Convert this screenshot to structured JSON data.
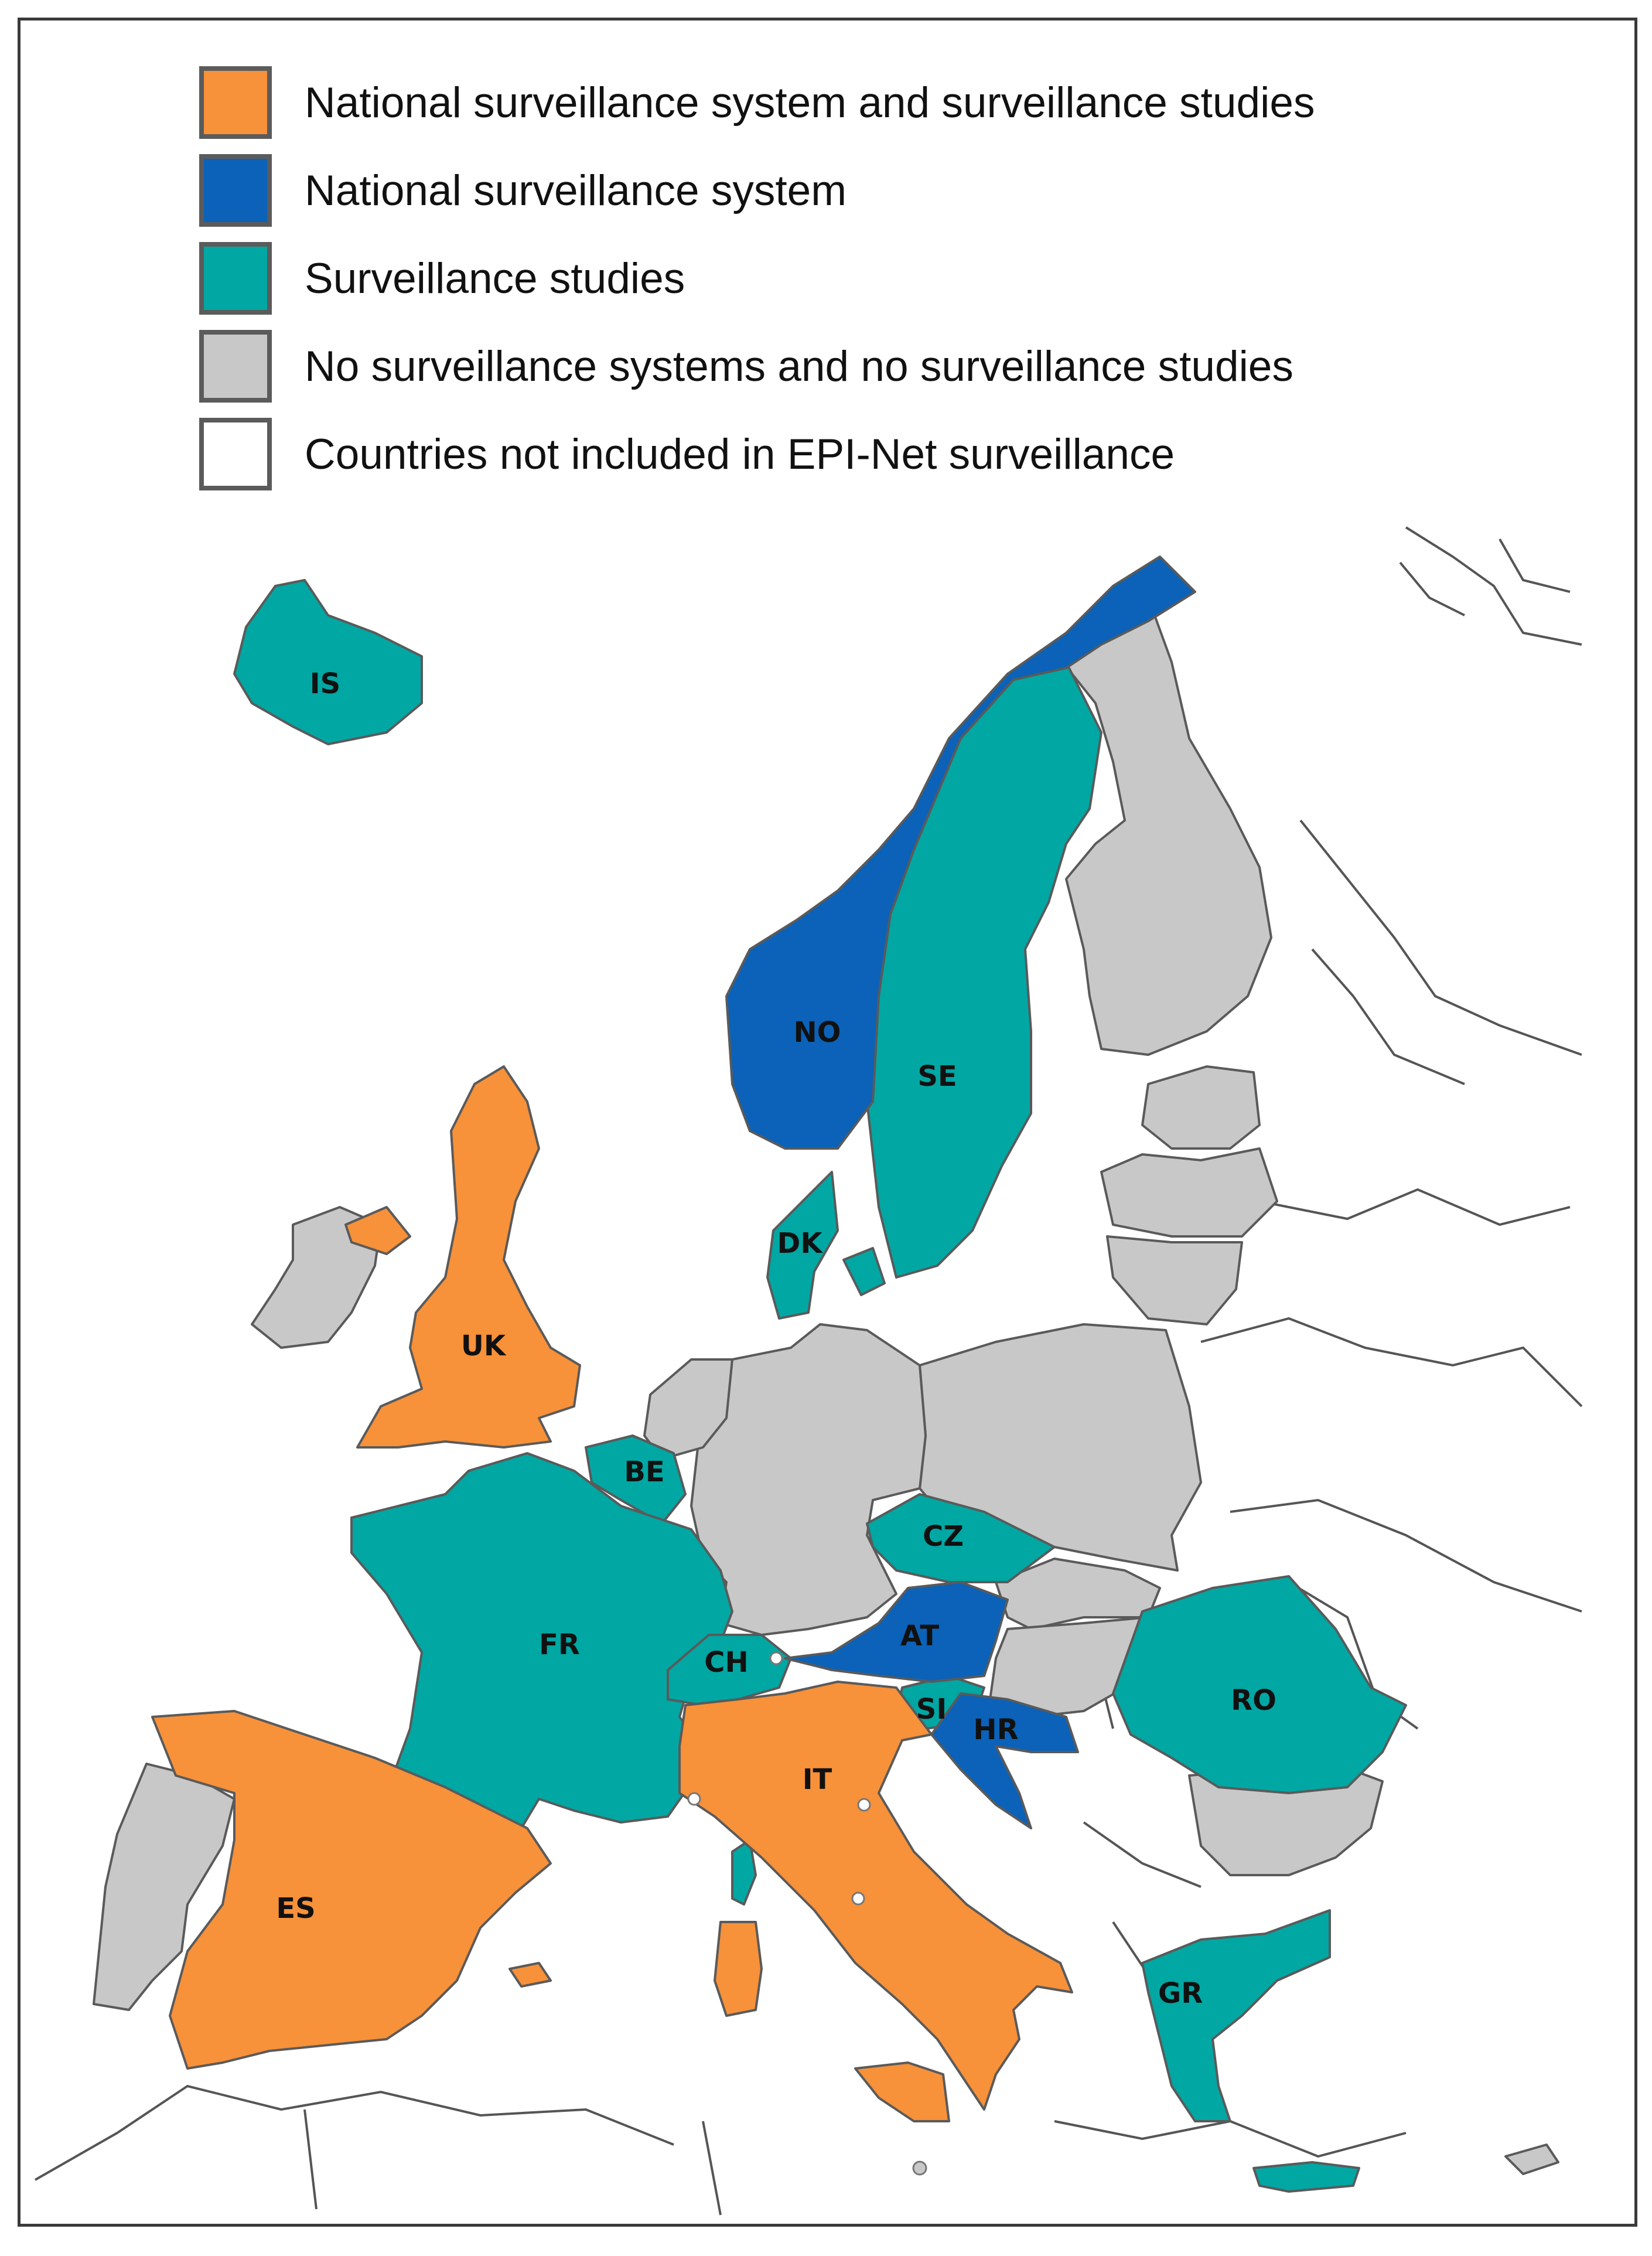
{
  "colors": {
    "both": "#f7913a",
    "national": "#0b62b8",
    "studies": "#00a7a3",
    "none": "#c8c8c8",
    "not_included": "#ffffff"
  },
  "legend": {
    "items": [
      {
        "key": "both",
        "label": "National surveillance system and surveillance studies"
      },
      {
        "key": "national",
        "label": "National surveillance system"
      },
      {
        "key": "studies",
        "label": "Surveillance studies"
      },
      {
        "key": "none",
        "label": "No surveillance systems and no surveillance studies"
      },
      {
        "key": "not_included",
        "label": "Countries not included in EPI-Net surveillance"
      }
    ]
  },
  "countries": [
    {
      "code": "IS",
      "status": "studies"
    },
    {
      "code": "NO",
      "status": "national"
    },
    {
      "code": "SE",
      "status": "studies"
    },
    {
      "code": "DK",
      "status": "studies"
    },
    {
      "code": "UK",
      "status": "both"
    },
    {
      "code": "BE",
      "status": "studies"
    },
    {
      "code": "FR",
      "status": "studies"
    },
    {
      "code": "CZ",
      "status": "studies"
    },
    {
      "code": "AT",
      "status": "national"
    },
    {
      "code": "CH",
      "status": "studies"
    },
    {
      "code": "SI",
      "status": "studies"
    },
    {
      "code": "HR",
      "status": "national"
    },
    {
      "code": "RO",
      "status": "studies"
    },
    {
      "code": "IT",
      "status": "both"
    },
    {
      "code": "ES",
      "status": "both"
    },
    {
      "code": "GR",
      "status": "studies"
    }
  ]
}
